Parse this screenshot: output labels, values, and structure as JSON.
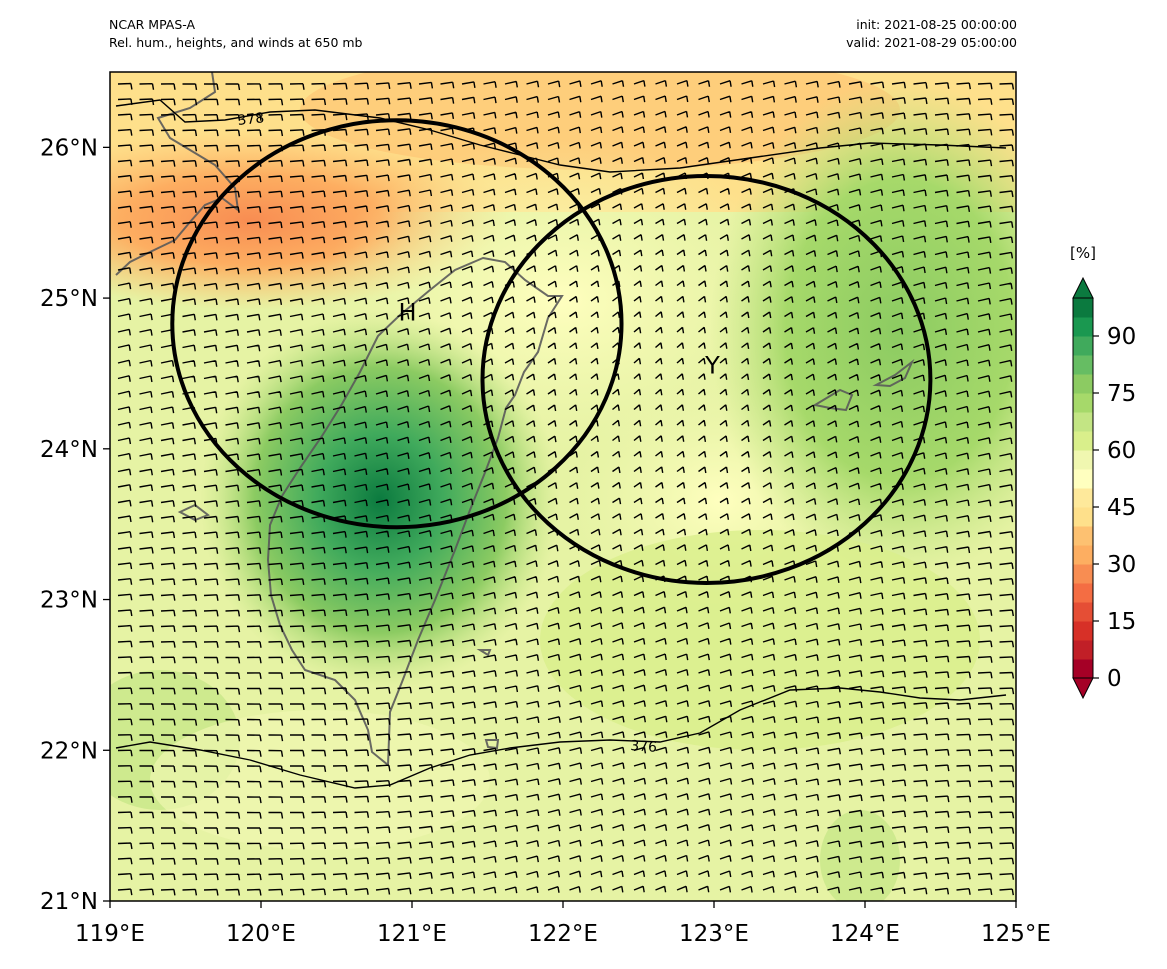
{
  "header": {
    "model": "NCAR MPAS-A",
    "field": "Rel. hum., heights, and winds at 650 mb",
    "init": "init: 2021-08-25 00:00:00",
    "valid": "valid: 2021-08-29 05:00:00"
  },
  "map": {
    "lon_range": [
      119,
      125
    ],
    "lat_range": [
      21,
      26.5
    ],
    "lon_ticks": [
      "119°E",
      "120°E",
      "121°E",
      "122°E",
      "123°E",
      "124°E",
      "125°E"
    ],
    "lat_ticks": [
      "21°N",
      "22°N",
      "23°N",
      "24°N",
      "25°N",
      "26°N"
    ],
    "contours": [
      {
        "label": "378",
        "label_pos": [
          119.95,
          26.18
        ]
      },
      {
        "label": "376",
        "label_pos": [
          122.55,
          22.04
        ]
      }
    ],
    "markers": [
      {
        "label": "H",
        "lon": 120.97,
        "lat": 24.85
      },
      {
        "label": "Y",
        "lon": 122.99,
        "lat": 24.5
      }
    ],
    "circles": [
      {
        "name": "circle-h",
        "lon": 120.9,
        "lat": 24.83,
        "radius_lat": 1.35
      },
      {
        "name": "circle-y",
        "lon": 122.95,
        "lat": 24.46,
        "radius_lat": 1.35
      }
    ],
    "colors": {
      "land_outline": "#5a5a5a",
      "contour": "#000000"
    }
  },
  "colorbar": {
    "title": "[%]",
    "ticks": [
      "0",
      "15",
      "30",
      "45",
      "60",
      "75",
      "90"
    ],
    "tick_values": [
      0,
      15,
      30,
      45,
      60,
      75,
      90
    ],
    "max": 100,
    "colors": [
      "#a50026",
      "#c11f27",
      "#d73027",
      "#e54e35",
      "#f46d43",
      "#f88d52",
      "#fdae61",
      "#fdc171",
      "#fee08b",
      "#fee99b",
      "#ffffbf",
      "#f0f7b0",
      "#d9ef8b",
      "#c3e584",
      "#a6d96a",
      "#8ccb62",
      "#66bd63",
      "#40aa5c",
      "#1a9850",
      "#0b7a3f"
    ]
  }
}
